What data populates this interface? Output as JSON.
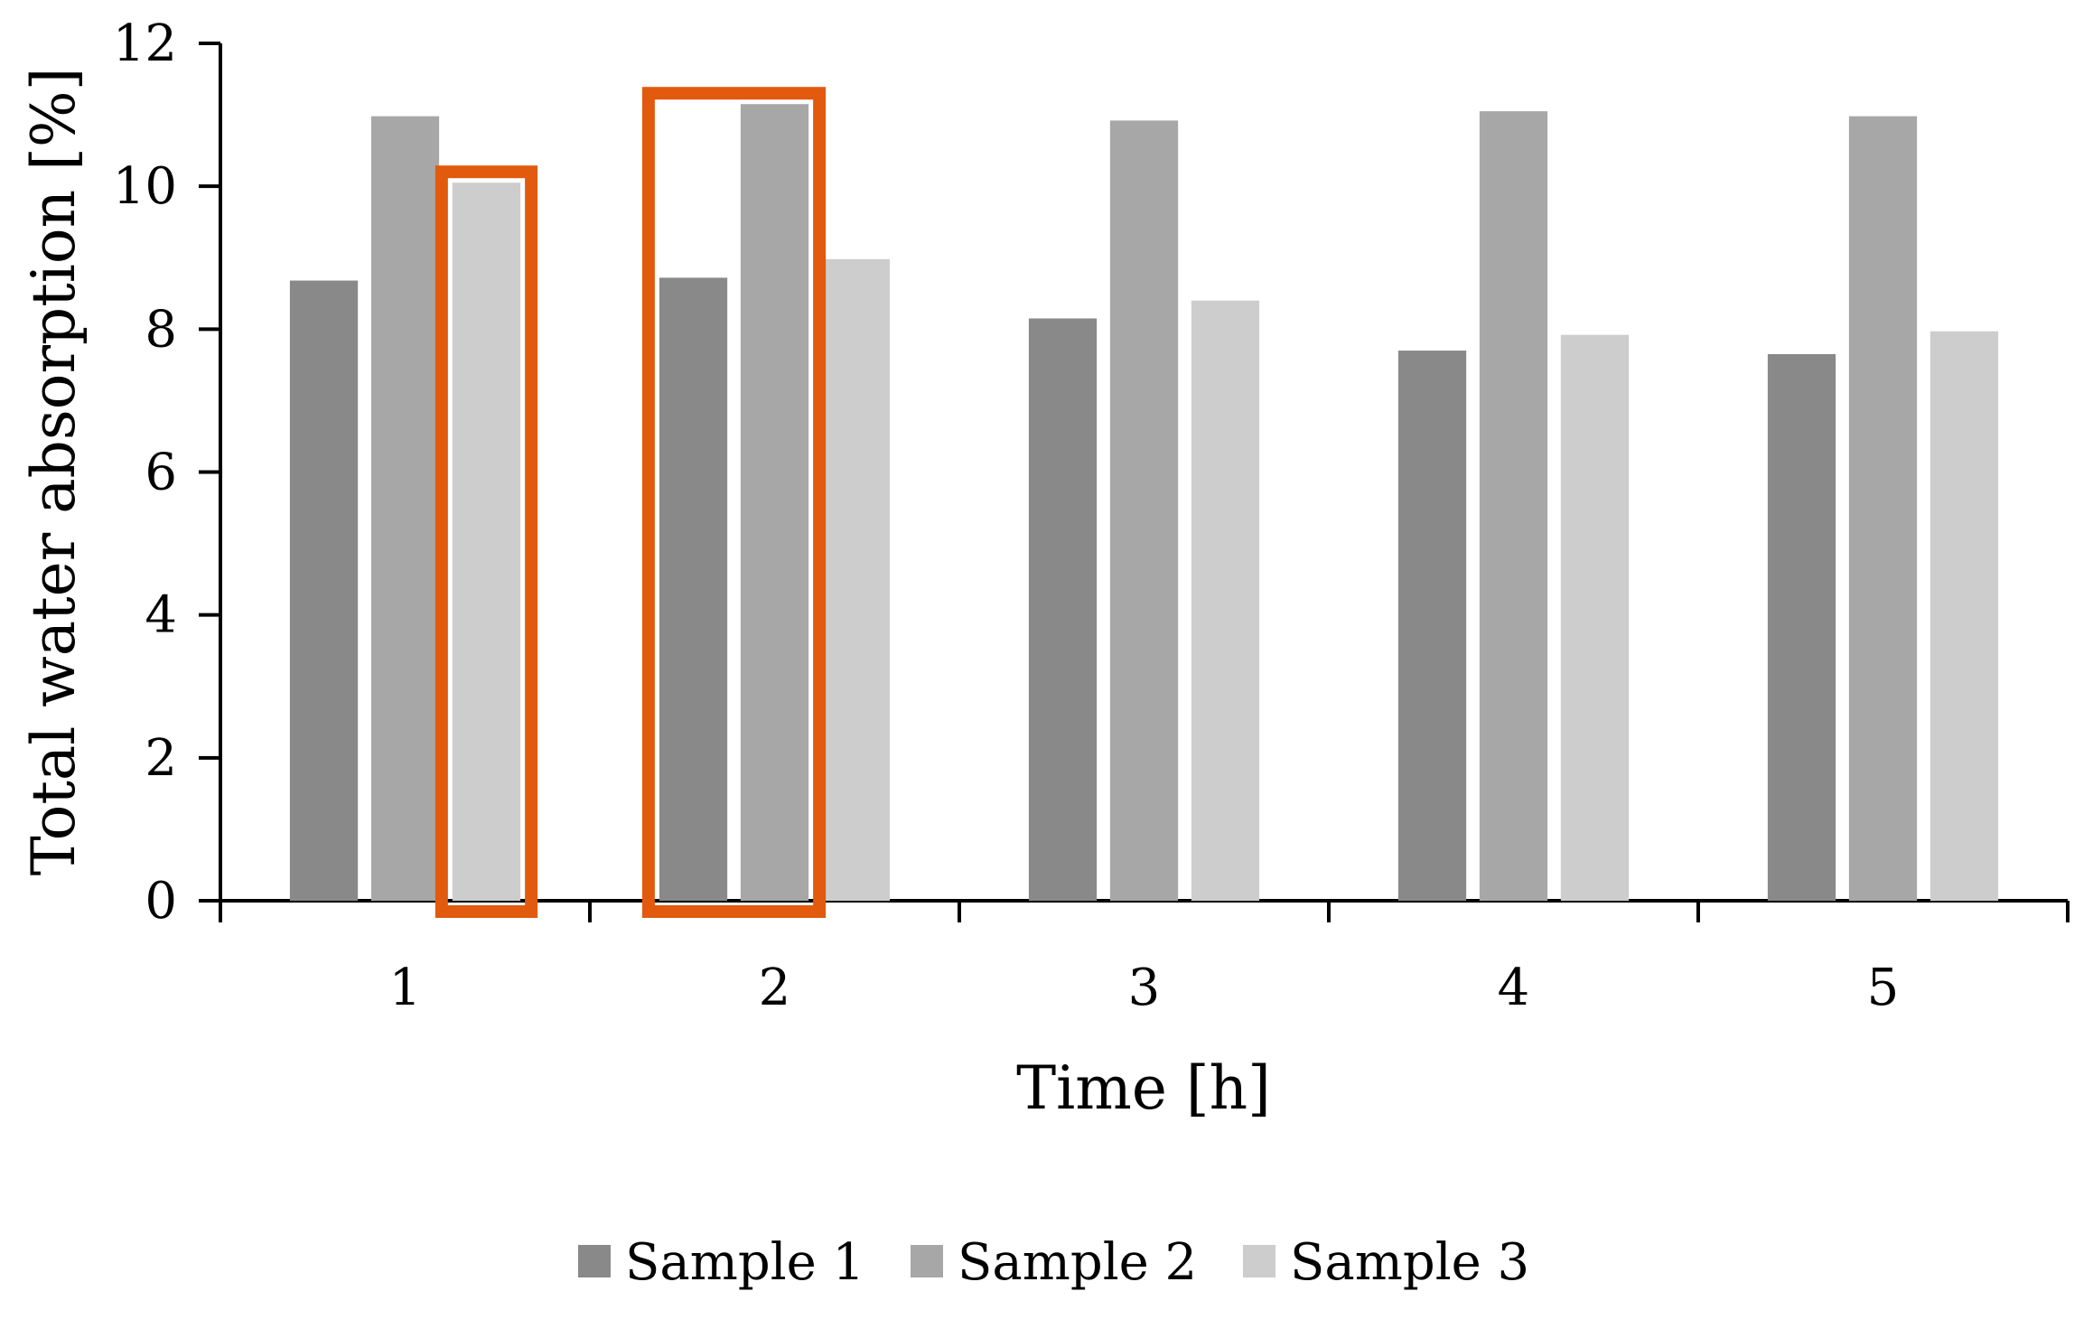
{
  "chart_data": {
    "type": "bar",
    "title": "",
    "xlabel": "Time [h]",
    "ylabel": "Total water absorption [%]",
    "ylim": [
      0,
      12
    ],
    "yticks": [
      0,
      2,
      4,
      6,
      8,
      10,
      12
    ],
    "ytick_labels": [
      "0",
      "2",
      "4",
      "6",
      "8",
      "10",
      "12"
    ],
    "categories": [
      "1",
      "2",
      "3",
      "4",
      "5"
    ],
    "series": [
      {
        "name": "Sample 1",
        "color": "#898989",
        "values": [
          8.68,
          8.72,
          8.15,
          7.7,
          7.65
        ]
      },
      {
        "name": "Sample 2",
        "color": "#a7a7a7",
        "values": [
          10.98,
          11.15,
          10.92,
          11.05,
          10.98
        ]
      },
      {
        "name": "Sample 3",
        "color": "#cdcdcd",
        "values": [
          10.05,
          8.98,
          8.4,
          7.92,
          7.97
        ]
      }
    ],
    "legend_position": "bottom",
    "grid": false,
    "highlight_color": "#e15a0d",
    "highlights": [
      {
        "category": "1",
        "series": [
          "Sample 3"
        ]
      },
      {
        "category": "2",
        "series": [
          "Sample 1",
          "Sample 2"
        ]
      }
    ]
  }
}
